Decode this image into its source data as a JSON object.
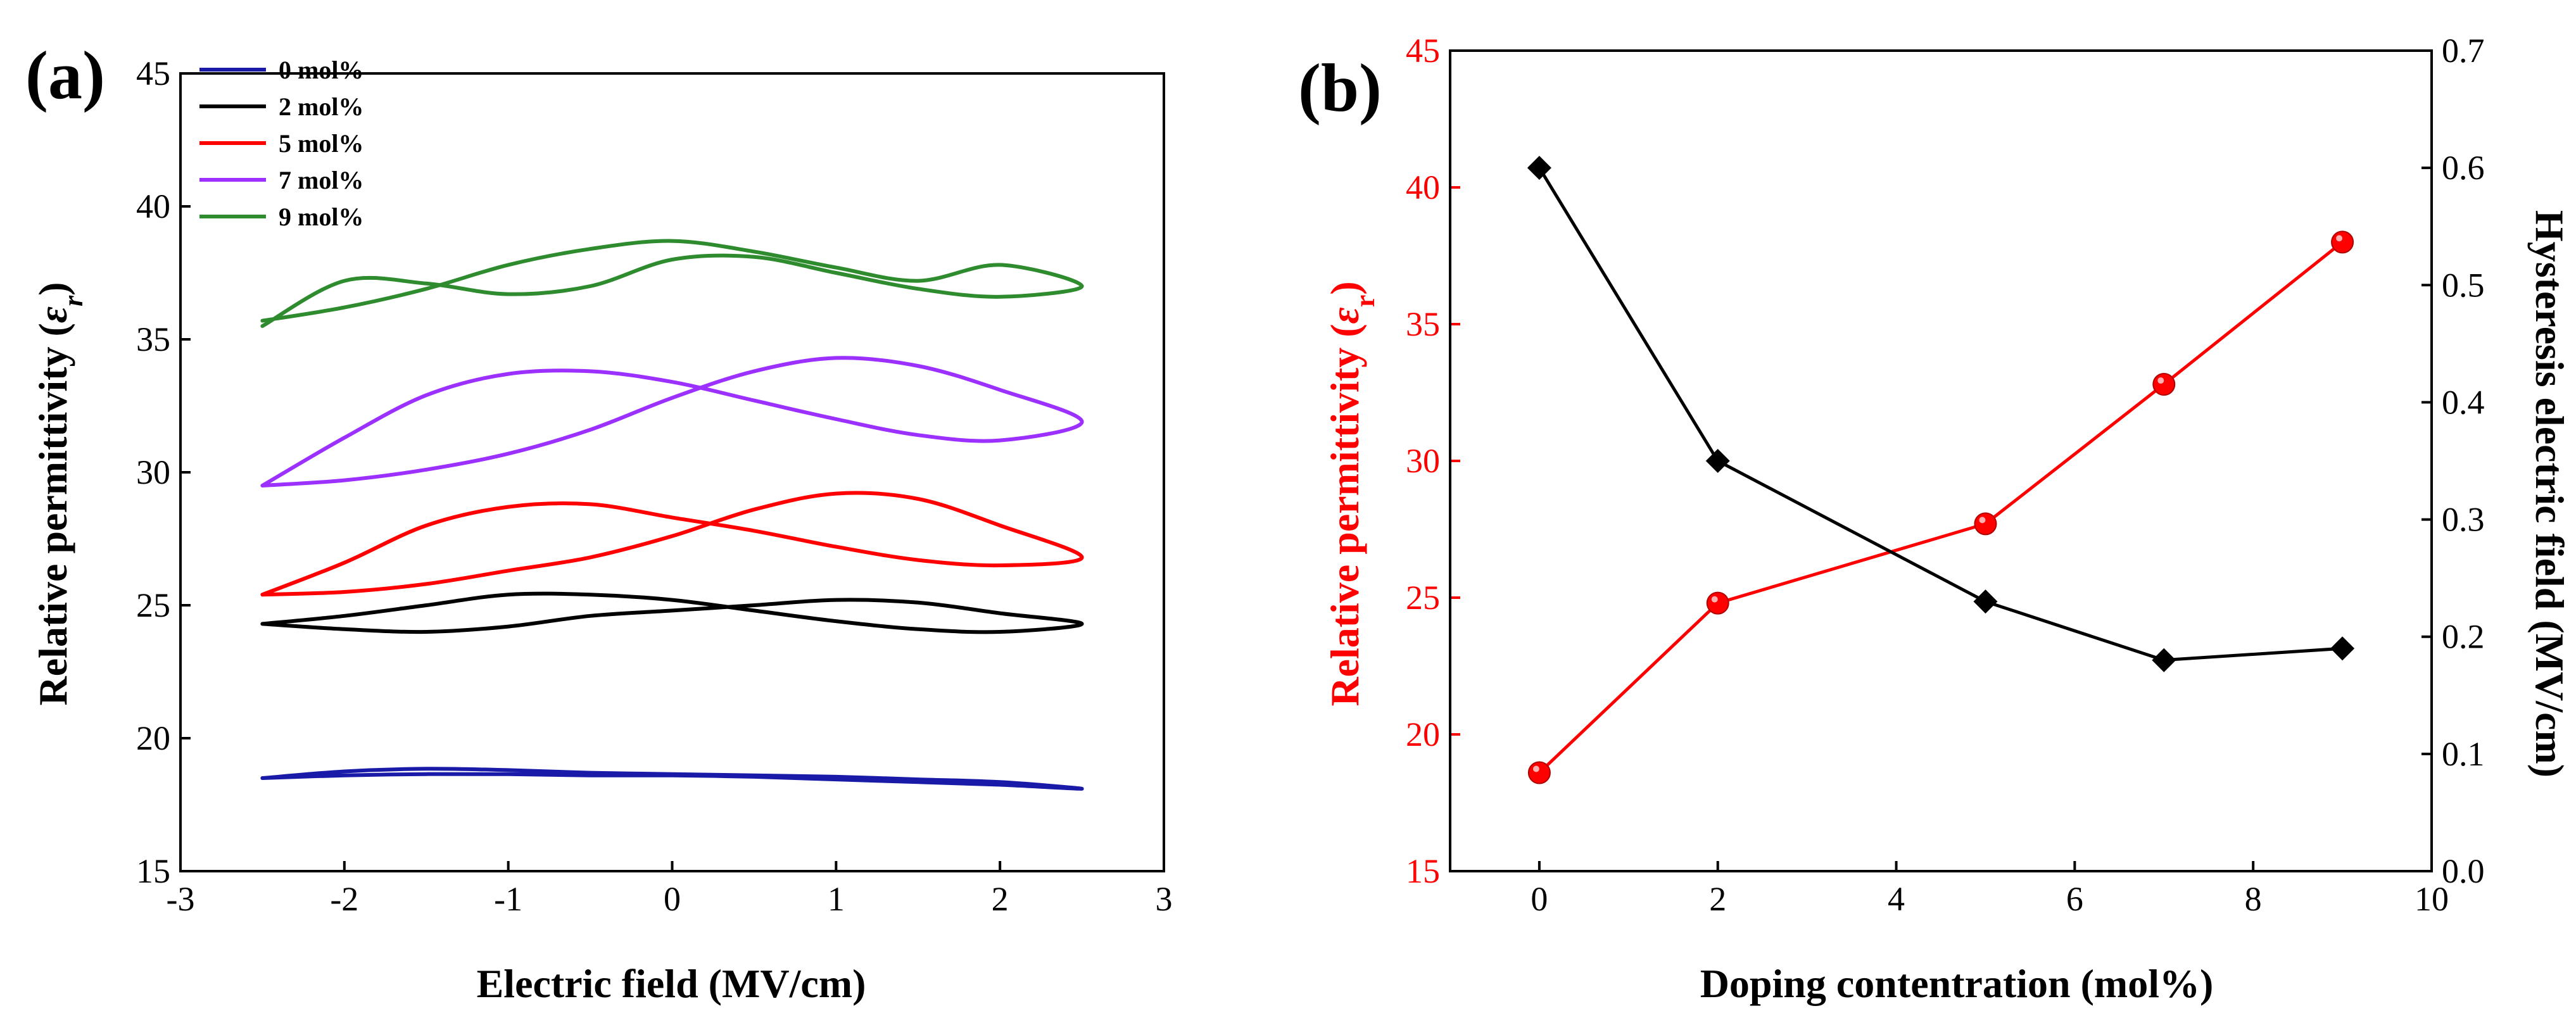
{
  "chart_data": [
    {
      "panel_label": "(a)",
      "type": "line",
      "xlabel": "Electric field (MV/cm)",
      "ylabel_prefix": "Relative permittivity (",
      "ylabel_symbol": "ε",
      "ylabel_sub": "r",
      "ylabel_suffix": ")",
      "xlim": [
        -3,
        3
      ],
      "ylim": [
        15,
        45
      ],
      "xticks": [
        -3,
        -2,
        -1,
        0,
        1,
        2,
        3
      ],
      "yticks": [
        15,
        20,
        25,
        30,
        35,
        40,
        45
      ],
      "xtick_labels": [
        "-3",
        "-2",
        "-1",
        "0",
        "1",
        "2",
        "3"
      ],
      "ytick_labels": [
        "15",
        "20",
        "25",
        "30",
        "35",
        "40",
        "45"
      ],
      "legend_position": "top-left",
      "series": [
        {
          "name": "0 mol%",
          "color": "#1a1aa8",
          "x": [
            -2.5,
            -2.0,
            -1.5,
            -1.0,
            -0.5,
            0.0,
            0.5,
            1.0,
            1.5,
            2.0,
            2.5,
            2.0,
            1.5,
            1.0,
            0.5,
            0.0,
            -0.5,
            -1.0,
            -1.5,
            -2.0,
            -2.5
          ],
          "y": [
            18.5,
            18.6,
            18.65,
            18.65,
            18.6,
            18.6,
            18.55,
            18.45,
            18.35,
            18.25,
            18.1,
            18.35,
            18.45,
            18.55,
            18.6,
            18.65,
            18.7,
            18.8,
            18.85,
            18.75,
            18.5
          ]
        },
        {
          "name": "2 mol%",
          "color": "#000000",
          "x": [
            -2.5,
            -2.0,
            -1.5,
            -1.0,
            -0.5,
            0.0,
            0.5,
            1.0,
            1.5,
            2.0,
            2.5,
            2.0,
            1.5,
            1.0,
            0.5,
            0.0,
            -0.5,
            -1.0,
            -1.5,
            -2.0,
            -2.5
          ],
          "y": [
            24.3,
            24.1,
            24.0,
            24.2,
            24.6,
            24.8,
            25.0,
            25.2,
            25.1,
            24.7,
            24.3,
            24.0,
            24.1,
            24.4,
            24.8,
            25.2,
            25.4,
            25.4,
            25.0,
            24.6,
            24.3
          ]
        },
        {
          "name": "5 mol%",
          "color": "#ff0000",
          "x": [
            -2.5,
            -2.0,
            -1.5,
            -1.0,
            -0.5,
            0.0,
            0.5,
            1.0,
            1.5,
            2.0,
            2.5,
            2.0,
            1.5,
            1.0,
            0.5,
            0.0,
            -0.5,
            -1.0,
            -1.5,
            -2.0,
            -2.5
          ],
          "y": [
            25.4,
            25.5,
            25.8,
            26.3,
            26.8,
            27.6,
            28.6,
            29.2,
            29.0,
            28.0,
            26.8,
            26.5,
            26.7,
            27.2,
            27.8,
            28.3,
            28.8,
            28.7,
            28.0,
            26.6,
            25.4
          ]
        },
        {
          "name": "7 mol%",
          "color": "#9b30ff",
          "x": [
            -2.5,
            -2.0,
            -1.5,
            -1.0,
            -0.5,
            0.0,
            0.5,
            1.0,
            1.5,
            2.0,
            2.5,
            2.0,
            1.5,
            1.0,
            0.5,
            0.0,
            -0.5,
            -1.0,
            -1.5,
            -2.0,
            -2.5
          ],
          "y": [
            29.5,
            29.7,
            30.1,
            30.7,
            31.6,
            32.8,
            33.8,
            34.3,
            34.0,
            33.1,
            31.9,
            31.2,
            31.4,
            32.0,
            32.7,
            33.4,
            33.8,
            33.7,
            32.9,
            31.3,
            29.5
          ]
        },
        {
          "name": "9 mol%",
          "color": "#2e8b2e",
          "x": [
            -2.5,
            -2.0,
            -1.5,
            -1.0,
            -0.5,
            0.0,
            0.5,
            1.0,
            1.5,
            2.0,
            2.5,
            2.0,
            1.5,
            1.0,
            0.5,
            0.0,
            -0.5,
            -1.0,
            -1.5,
            -2.0,
            -2.5
          ],
          "y": [
            35.7,
            36.2,
            36.9,
            37.8,
            38.4,
            38.7,
            38.3,
            37.7,
            37.2,
            37.8,
            37.0,
            36.6,
            36.9,
            37.5,
            38.1,
            38.0,
            37.0,
            36.7,
            37.1,
            37.2,
            35.5
          ]
        }
      ]
    },
    {
      "panel_label": "(b)",
      "type": "line",
      "xlabel": "Doping contentration (mol%)",
      "ylabel_prefix": "Relative permittivity (",
      "ylabel_symbol": "ε",
      "ylabel_sub": "r",
      "ylabel_suffix": ")",
      "y2label": "Hysteresis electric field  (MV/cm)",
      "xlim": [
        -1,
        10
      ],
      "ylim": [
        15,
        45
      ],
      "y2lim": [
        0.0,
        0.7
      ],
      "xticks": [
        0,
        2,
        4,
        6,
        8,
        10
      ],
      "yticks": [
        15,
        20,
        25,
        30,
        35,
        40,
        45
      ],
      "y2ticks": [
        0.0,
        0.1,
        0.2,
        0.3,
        0.4,
        0.5,
        0.6,
        0.7
      ],
      "xtick_labels": [
        "0",
        "2",
        "4",
        "6",
        "8",
        "10"
      ],
      "ytick_labels": [
        "15",
        "20",
        "25",
        "30",
        "35",
        "40",
        "45"
      ],
      "y2tick_labels": [
        "0.0",
        "0.1",
        "0.2",
        "0.3",
        "0.4",
        "0.5",
        "0.6",
        "0.7"
      ],
      "series": [
        {
          "name": "Relative permittivity",
          "axis": "left",
          "color": "#ff0000",
          "marker": "circle",
          "x": [
            0,
            2,
            5,
            7,
            9
          ],
          "y": [
            18.6,
            24.8,
            27.7,
            32.8,
            38.0
          ]
        },
        {
          "name": "Hysteresis electric field",
          "axis": "right",
          "color": "#000000",
          "marker": "diamond",
          "x": [
            0,
            2,
            5,
            7,
            9
          ],
          "y": [
            0.6,
            0.35,
            0.23,
            0.18,
            0.19
          ]
        }
      ]
    }
  ]
}
